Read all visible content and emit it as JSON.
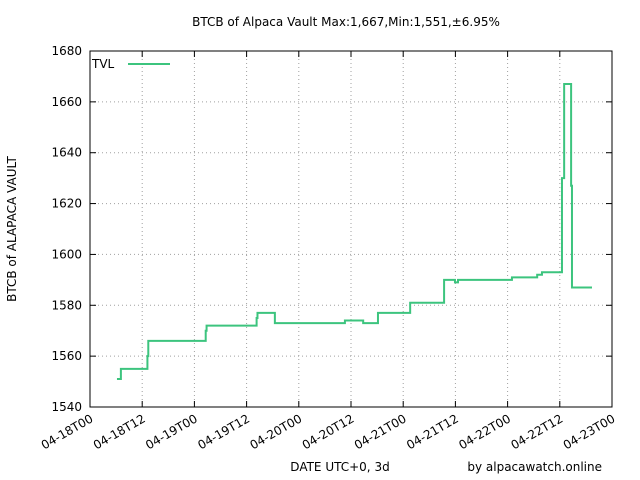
{
  "chart_data": {
    "type": "line",
    "title": "BTCB of Alpaca Vault Max:1,667,Min:1,551,±6.95%",
    "x_label": "DATE UTC+0, 3d",
    "y_label": "BTCB of ALAPACA VAULT",
    "annotation": "by alpacawatch.online",
    "step": true,
    "grid": true,
    "legend": "upper left",
    "xlim": [
      0,
      120
    ],
    "ylim": [
      1540,
      1680
    ],
    "xticks": [
      {
        "value": 0,
        "label": "04-18T00"
      },
      {
        "value": 12,
        "label": "04-18T12"
      },
      {
        "value": 24,
        "label": "04-19T00"
      },
      {
        "value": 36,
        "label": "04-19T12"
      },
      {
        "value": 48,
        "label": "04-20T00"
      },
      {
        "value": 60,
        "label": "04-20T12"
      },
      {
        "value": 72,
        "label": "04-21T00"
      },
      {
        "value": 84,
        "label": "04-21T12"
      },
      {
        "value": 96,
        "label": "04-22T00"
      },
      {
        "value": 108,
        "label": "04-22T12"
      },
      {
        "value": 120,
        "label": "04-23T00"
      }
    ],
    "yticks": [
      1540,
      1560,
      1580,
      1600,
      1620,
      1640,
      1660,
      1680
    ],
    "series": [
      {
        "name": "TVL",
        "color": "#3cc47e",
        "x": [
          6.2,
          7.1,
          13.2,
          13.4,
          26.6,
          26.8,
          38.3,
          38.5,
          42.5,
          58.6,
          62.8,
          66.2,
          73.6,
          81.4,
          83.9,
          84.6,
          97,
          102.8,
          103.9,
          108.5,
          109,
          110.6,
          110.8,
          115.4
        ],
        "values": [
          1551,
          1555,
          1560,
          1566,
          1570,
          1572,
          1575,
          1577,
          1573,
          1574,
          1573,
          1577,
          1581,
          1590,
          1589,
          1590,
          1591,
          1592,
          1593,
          1630,
          1667,
          1627,
          1587,
          1587
        ]
      }
    ]
  }
}
